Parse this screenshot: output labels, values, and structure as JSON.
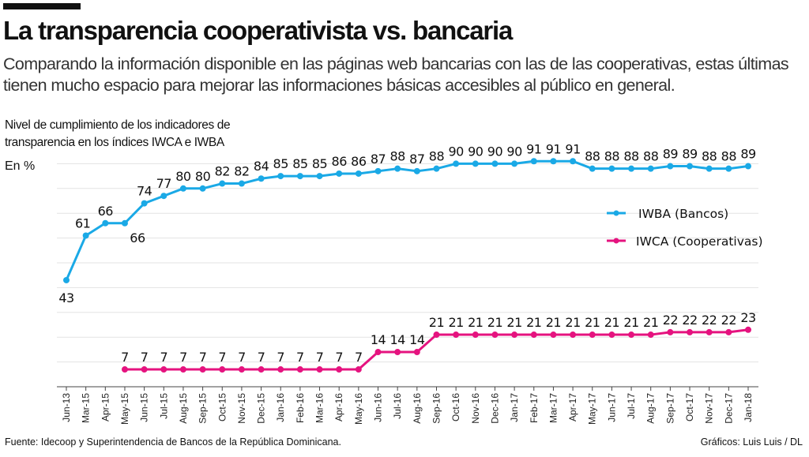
{
  "header": {
    "title": "La transparencia cooperativista vs. bancaria",
    "subtitle": "Comparando la información disponible en las páginas web bancarias con las de las cooperativas, estas últimas tienen mucho espacio para mejorar las informaciones básicas accesibles al público en general."
  },
  "footer": {
    "source": "Fuente: Idecoop y Superintendencia de Bancos de la República Dominicana.",
    "credit": "Gráficos: Luis Luis / DL"
  },
  "chart_data": {
    "type": "line",
    "ylabel_line1": "Nivel de cumplimiento de los indicadores de",
    "ylabel_line2": "transparencia en los índices IWCA e IWBA",
    "unit": "En %",
    "ylim": [
      0,
      93
    ],
    "grid": true,
    "legend_placement": "right",
    "categories": [
      "Jun-13",
      "Mar-15",
      "Apr-15",
      "May-15",
      "Jun-15",
      "Jul-15",
      "Aug-15",
      "Sep-15",
      "Oct-15",
      "Nov-15",
      "Dec-15",
      "Jan-16",
      "Feb-16",
      "Mar-16",
      "Apr-16",
      "May-16",
      "Jun-16",
      "Jul-16",
      "Aug-16",
      "Sep-16",
      "Oct-16",
      "Nov-16",
      "Dec-16",
      "Jan-17",
      "Feb-17",
      "Mar-17",
      "Apr-17",
      "May-17",
      "Jun-17",
      "Jul-17",
      "Aug-17",
      "Sep-17",
      "Oct-17",
      "Nov-17",
      "Dec-17",
      "Jan-18"
    ],
    "series": [
      {
        "name": "IWBA (Bancos)",
        "color": "#1aa9e6",
        "values": [
          43,
          61,
          66,
          66,
          74,
          77,
          80,
          80,
          82,
          82,
          84,
          85,
          85,
          85,
          86,
          86,
          87,
          88,
          87,
          88,
          90,
          90,
          90,
          90,
          91,
          91,
          91,
          88,
          88,
          88,
          88,
          89,
          89,
          88,
          88,
          89
        ]
      },
      {
        "name": "IWCA (Cooperativas)",
        "color": "#e5137f",
        "values": [
          null,
          null,
          null,
          7,
          7,
          7,
          7,
          7,
          7,
          7,
          7,
          7,
          7,
          7,
          7,
          7,
          14,
          14,
          14,
          21,
          21,
          21,
          21,
          21,
          21,
          21,
          21,
          21,
          21,
          21,
          21,
          22,
          22,
          22,
          22,
          23
        ]
      }
    ]
  }
}
